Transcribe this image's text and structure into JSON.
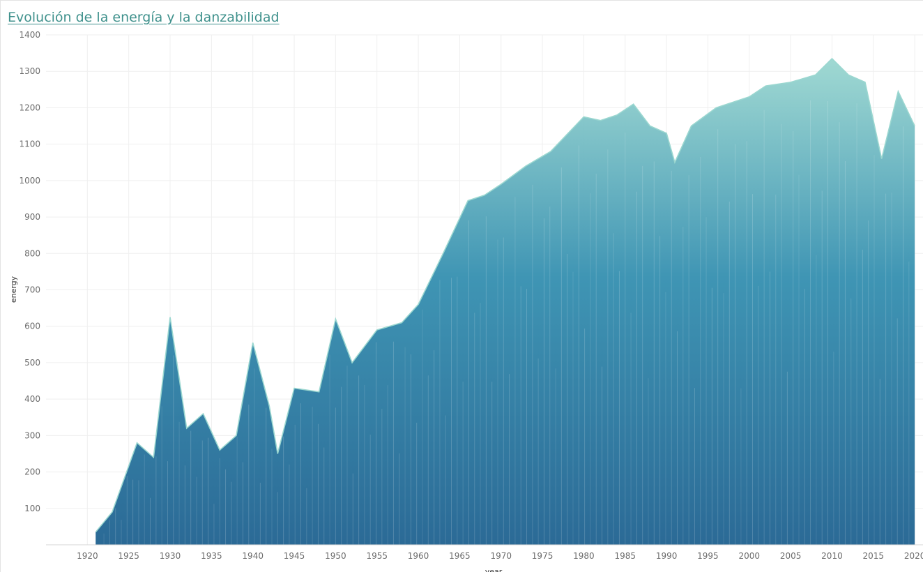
{
  "chart_data": {
    "type": "line",
    "title": "Evolución de la energía y la danzabilidad",
    "xlabel": "year",
    "ylabel": "energy",
    "xlim": [
      1915,
      2021
    ],
    "ylim": [
      0,
      1400
    ],
    "x_ticks": [
      1920,
      1925,
      1930,
      1935,
      1940,
      1945,
      1950,
      1955,
      1960,
      1965,
      1970,
      1975,
      1980,
      1985,
      1990,
      1995,
      2000,
      2005,
      2010,
      2015,
      2020
    ],
    "y_ticks": [
      100,
      200,
      300,
      400,
      500,
      600,
      700,
      800,
      900,
      1000,
      1100,
      1200,
      1300,
      1400
    ],
    "grid": true,
    "legend": "none",
    "colors": {
      "low": "#2b6a96",
      "mid": "#3f95b4",
      "high": "#9bd7d0"
    },
    "upper_envelope": {
      "x": [
        1921,
        1923,
        1926,
        1928,
        1930,
        1932,
        1934,
        1936,
        1938,
        1940,
        1942,
        1943,
        1945,
        1948,
        1950,
        1952,
        1955,
        1958,
        1960,
        1963,
        1966,
        1968,
        1970,
        1973,
        1976,
        1980,
        1982,
        1984,
        1986,
        1988,
        1990,
        1991,
        1993,
        1996,
        2000,
        2002,
        2005,
        2008,
        2010,
        2012,
        2014,
        2016,
        2018,
        2020
      ],
      "values": [
        35,
        90,
        280,
        240,
        625,
        320,
        360,
        260,
        300,
        555,
        380,
        250,
        430,
        420,
        620,
        500,
        590,
        610,
        660,
        800,
        945,
        960,
        990,
        1040,
        1080,
        1175,
        1165,
        1180,
        1210,
        1150,
        1130,
        1050,
        1150,
        1200,
        1230,
        1260,
        1270,
        1290,
        1335,
        1290,
        1270,
        1060,
        1245,
        1150
      ]
    }
  }
}
